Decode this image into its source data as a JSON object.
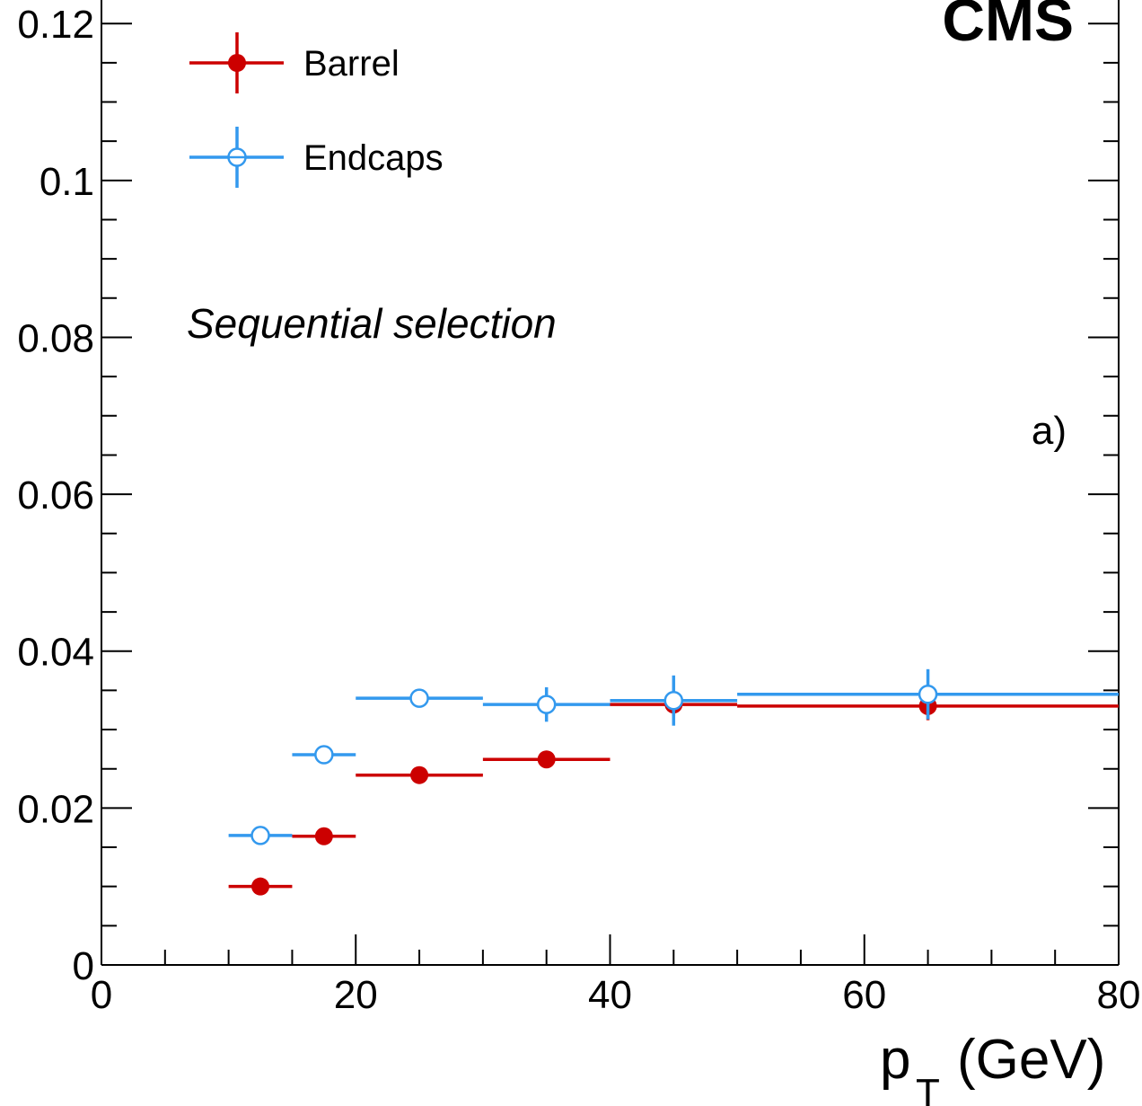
{
  "chart_data": {
    "type": "scatter",
    "title": "",
    "xlabel": "p",
    "xlabel_sub": "T",
    "xlabel_unit": "(GeV)",
    "ylabel": "",
    "xlim": [
      0,
      80
    ],
    "ylim": [
      0,
      0.123
    ],
    "x_ticks": [
      0,
      20,
      40,
      60,
      80
    ],
    "x_tick_labels": [
      "0",
      "20",
      "40",
      "60",
      "80"
    ],
    "y_ticks": [
      0,
      0.02,
      0.04,
      0.06,
      0.08,
      0.1,
      0.12
    ],
    "y_tick_labels": [
      "0",
      "0.02",
      "0.04",
      "0.06",
      "0.08",
      "0.1",
      "0.12"
    ],
    "grid": false,
    "legend_position": "top-left",
    "annotations": {
      "experiment": "CMS",
      "selection": "Sequential selection",
      "panel": "a)"
    },
    "series": [
      {
        "name": "Barrel",
        "color": "#cc0000",
        "marker": "filled-circle",
        "points": [
          {
            "xlow": 10,
            "xhigh": 15,
            "x": 12.5,
            "y": 0.01,
            "yerr": 0.0006
          },
          {
            "xlow": 15,
            "xhigh": 20,
            "x": 17.5,
            "y": 0.0164,
            "yerr": 0.0006
          },
          {
            "xlow": 20,
            "xhigh": 30,
            "x": 25,
            "y": 0.0242,
            "yerr": 0.0006
          },
          {
            "xlow": 30,
            "xhigh": 40,
            "x": 35,
            "y": 0.0262,
            "yerr": 0.001
          },
          {
            "xlow": 40,
            "xhigh": 50,
            "x": 45,
            "y": 0.0332,
            "yerr": 0.0014
          },
          {
            "xlow": 50,
            "xhigh": 80,
            "x": 65,
            "y": 0.033,
            "yerr": 0.0018
          }
        ]
      },
      {
        "name": "Endcaps",
        "color": "#3399ee",
        "marker": "open-circle",
        "points": [
          {
            "xlow": 10,
            "xhigh": 15,
            "x": 12.5,
            "y": 0.0165,
            "yerr": 0.0006
          },
          {
            "xlow": 15,
            "xhigh": 20,
            "x": 17.5,
            "y": 0.0268,
            "yerr": 0.0006
          },
          {
            "xlow": 20,
            "xhigh": 30,
            "x": 25,
            "y": 0.034,
            "yerr": 0.0012
          },
          {
            "xlow": 30,
            "xhigh": 40,
            "x": 35,
            "y": 0.0332,
            "yerr": 0.0022
          },
          {
            "xlow": 40,
            "xhigh": 50,
            "x": 45,
            "y": 0.0337,
            "yerr": 0.0032
          },
          {
            "xlow": 50,
            "xhigh": 80,
            "x": 65,
            "y": 0.0345,
            "yerr": 0.0032
          }
        ]
      }
    ]
  }
}
